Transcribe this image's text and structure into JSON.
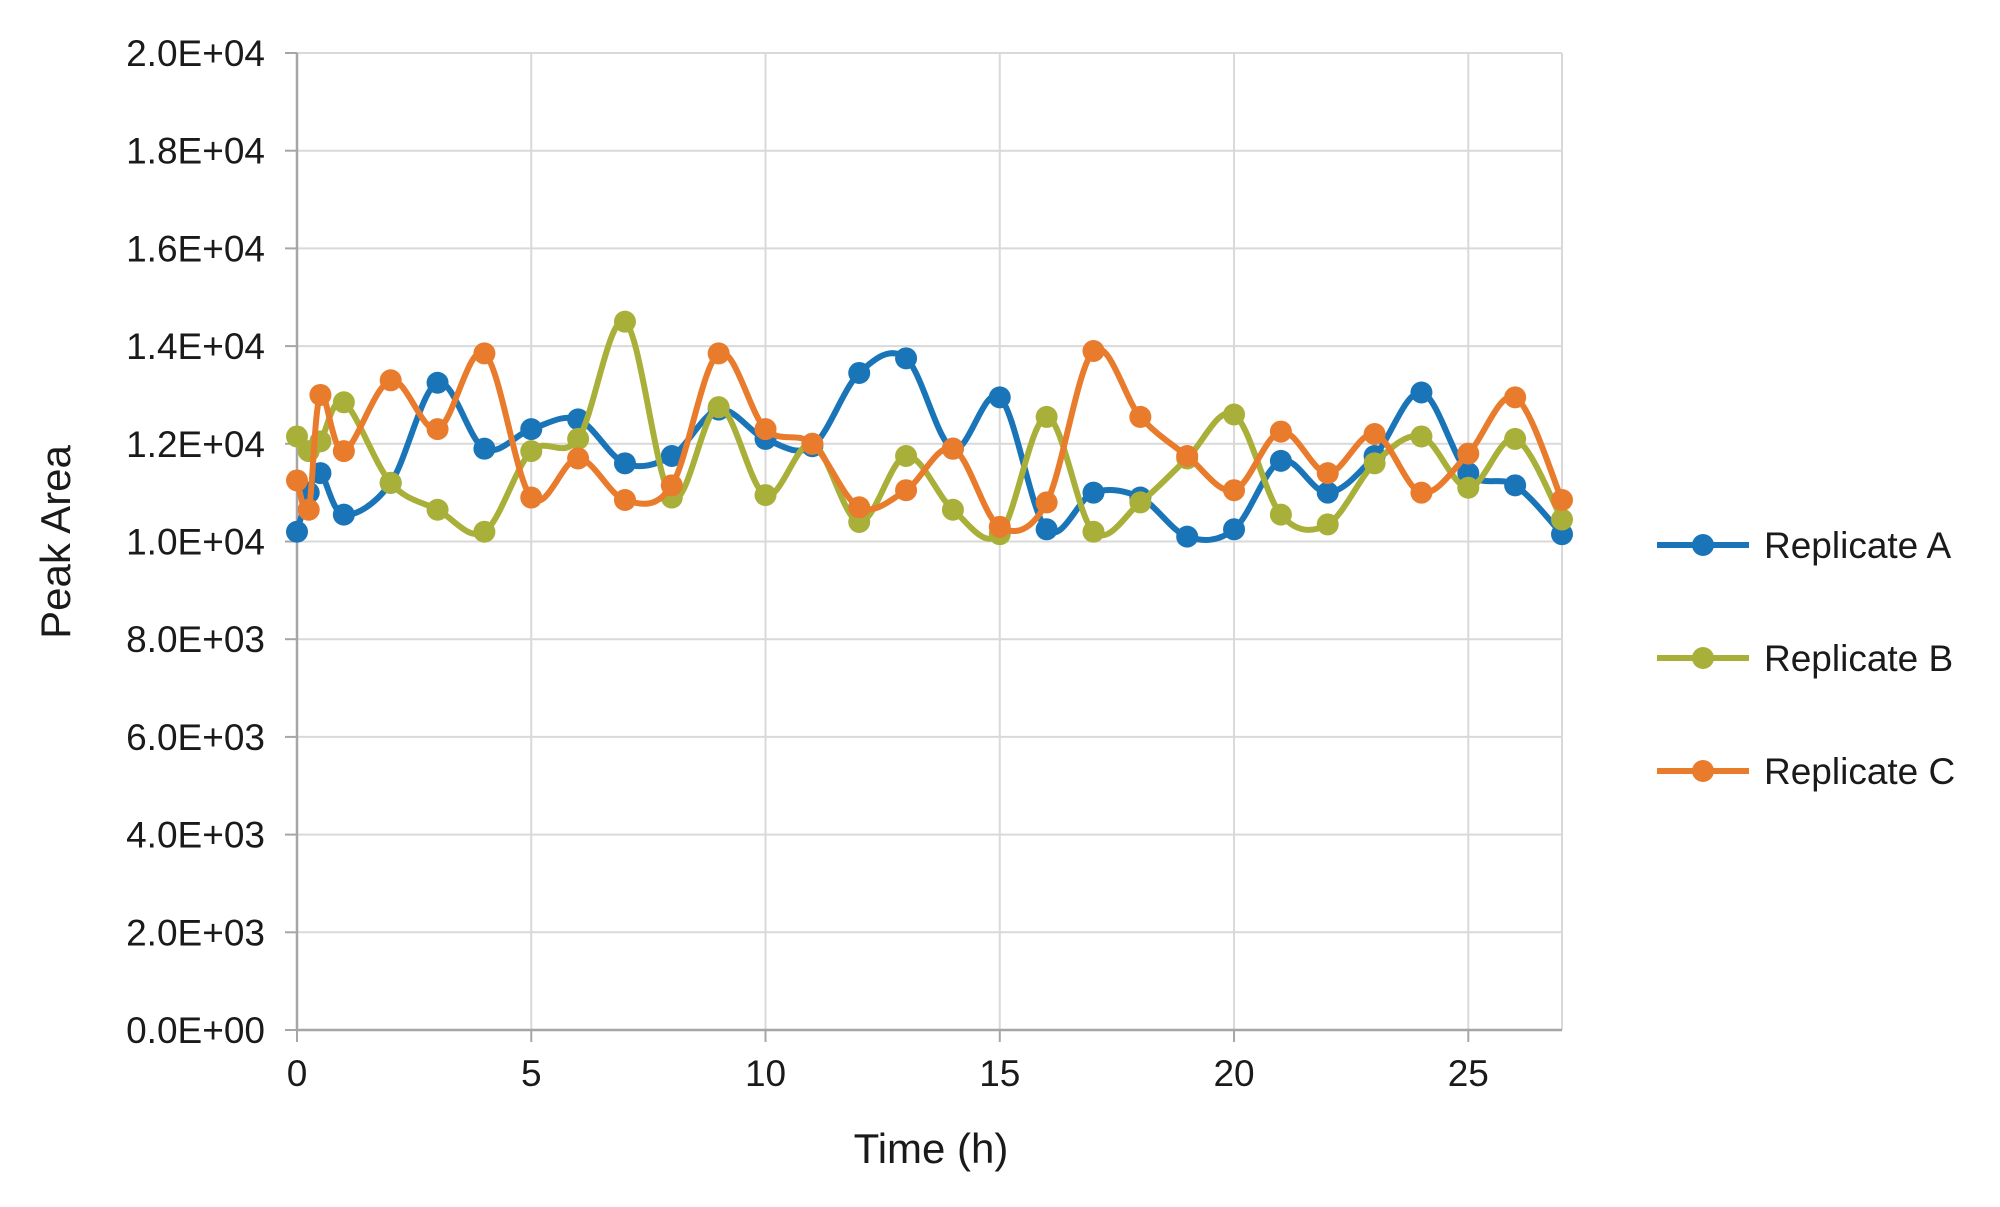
{
  "chart_data": {
    "type": "line",
    "title": "",
    "xlabel": "Time (h)",
    "ylabel": "Peak Area",
    "xlim": [
      0,
      27
    ],
    "ylim": [
      0,
      20000
    ],
    "x_ticks": [
      0,
      5,
      10,
      15,
      20,
      25
    ],
    "x_tick_labels": [
      "0",
      "5",
      "10",
      "15",
      "20",
      "25"
    ],
    "y_ticks": [
      0,
      2000,
      4000,
      6000,
      8000,
      10000,
      12000,
      14000,
      16000,
      18000,
      20000
    ],
    "y_tick_labels": [
      "0.0E+00",
      "2.0E+03",
      "4.0E+03",
      "6.0E+03",
      "8.0E+03",
      "1.0E+04",
      "1.2E+04",
      "1.4E+04",
      "1.6E+04",
      "1.8E+04",
      "2.0E+04"
    ],
    "grid": true,
    "smoothed_lines": true,
    "markers": "circle",
    "legend_position": "right",
    "x": [
      0,
      0.25,
      0.5,
      1,
      2,
      3,
      4,
      5,
      6,
      7,
      8,
      9,
      10,
      11,
      12,
      13,
      14,
      15,
      16,
      17,
      18,
      19,
      20,
      21,
      22,
      23,
      24,
      25,
      26,
      27
    ],
    "series": [
      {
        "name": "Replicate A",
        "color": "#1a75b8",
        "values": [
          10200,
          11000,
          11400,
          10550,
          11200,
          13250,
          11900,
          12300,
          12500,
          11600,
          11750,
          12700,
          12100,
          11950,
          13450,
          13750,
          11900,
          12950,
          10250,
          11000,
          10900,
          10100,
          10250,
          11650,
          11000,
          11750,
          13050,
          11400,
          11150,
          10150
        ]
      },
      {
        "name": "Replicate B",
        "color": "#a9b03a",
        "values": [
          12150,
          11850,
          12050,
          12850,
          11200,
          10650,
          10200,
          11850,
          12100,
          14500,
          10900,
          12750,
          10950,
          12000,
          10400,
          11750,
          10650,
          10150,
          12550,
          10200,
          10800,
          11700,
          12600,
          10550,
          10350,
          11600,
          12150,
          11100,
          12100,
          10450
        ]
      },
      {
        "name": "Replicate C",
        "color": "#e97b2d",
        "values": [
          11250,
          10650,
          13000,
          11850,
          13300,
          12300,
          13850,
          10900,
          11700,
          10850,
          11150,
          13850,
          12300,
          12000,
          10700,
          11050,
          11900,
          10300,
          10800,
          13900,
          12550,
          11750,
          11050,
          12250,
          11400,
          12200,
          11000,
          11800,
          12950,
          10850
        ]
      }
    ]
  }
}
